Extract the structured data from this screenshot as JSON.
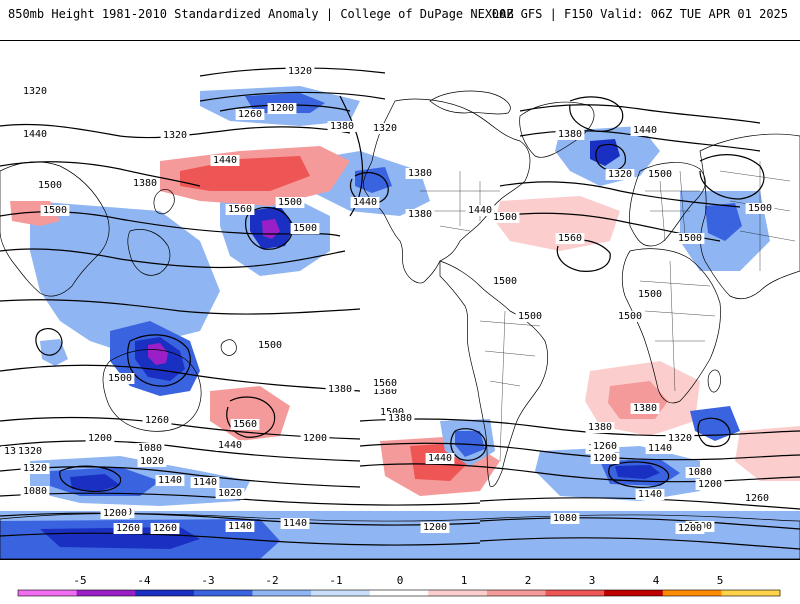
{
  "header": {
    "left_title": "850mb Height 1981-2010 Standardized Anomaly | College of DuPage NEXLAB",
    "right_title": "00Z GFS | F150 Valid: 06Z TUE APR 01 2025"
  },
  "contour_labels": [
    "1320",
    "1320",
    "1200",
    "1260",
    "1440",
    "1320",
    "1380",
    "1320",
    "1500",
    "1380",
    "1440",
    "1500",
    "1560",
    "1500",
    "1500",
    "1440",
    "1380",
    "1440",
    "1500",
    "1380",
    "1560",
    "1500",
    "1500",
    "1500",
    "1500",
    "1500",
    "1500",
    "1500",
    "1320",
    "1380",
    "1440",
    "1500",
    "1500",
    "1380",
    "1500",
    "1380",
    "1560",
    "1500",
    "1380",
    "1320",
    "1200",
    "1260",
    "1080",
    "1020",
    "1140",
    "1260",
    "1320",
    "1440",
    "1440",
    "1200",
    "1380",
    "1260",
    "1320",
    "1380",
    "1260",
    "1200",
    "1140",
    "1080",
    "1140",
    "1200",
    "1260",
    "1080",
    "1020",
    "1140",
    "1080",
    "1200",
    "1140",
    "1260",
    "1200",
    "1140",
    "1200",
    "1080",
    "1320",
    "1200",
    "1560"
  ],
  "colorbar": {
    "ticks": [
      "-5",
      "-4",
      "-3",
      "-2",
      "-1",
      "0",
      "1",
      "2",
      "3",
      "4",
      "5"
    ],
    "colors": [
      "#f06cf0",
      "#9b1fc6",
      "#1a30c2",
      "#3a63e0",
      "#8fb5f2",
      "#c9defa",
      "#ffffff",
      "#fbcdcd",
      "#f59a9a",
      "#ee5555",
      "#c00000",
      "#ff8c00",
      "#ffd24a"
    ]
  },
  "anomaly_colors": {
    "strong_neg": "#9b1fc6",
    "neg3": "#1a30c2",
    "neg2": "#3a63e0",
    "neg1": "#8fb5f2",
    "neg0": "#c9defa",
    "pos0": "#fbcdcd",
    "pos1": "#f59a9a",
    "pos2": "#ee5555"
  }
}
